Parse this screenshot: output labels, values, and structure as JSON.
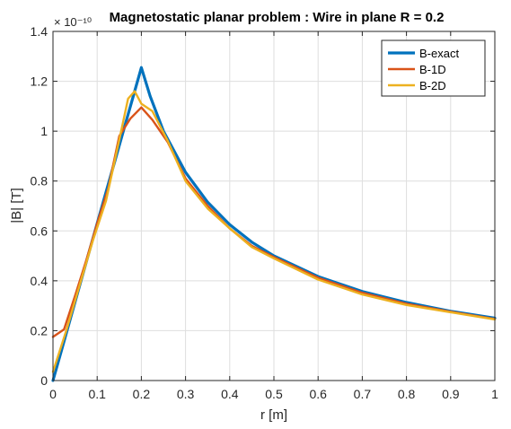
{
  "chart_data": {
    "type": "line",
    "title": "Magnetostatic planar problem : Wire in plane R = 0.2",
    "xlabel": "r [m]",
    "ylabel": "|B| [T]",
    "y_exponent_label": "× 10⁻¹⁰",
    "xlim": [
      0,
      1
    ],
    "ylim": [
      0,
      1.4
    ],
    "grid": true,
    "legend_position": "top-right",
    "x_ticks": [
      "0",
      "0.1",
      "0.2",
      "0.3",
      "0.4",
      "0.5",
      "0.6",
      "0.7",
      "0.8",
      "0.9",
      "1"
    ],
    "y_ticks": [
      "0",
      "0.2",
      "0.4",
      "0.6",
      "0.8",
      "1",
      "1.2",
      "1.4"
    ],
    "series": [
      {
        "name": "B-exact",
        "color": "#0072BD",
        "width": 3.2,
        "x": [
          0,
          0.02,
          0.05,
          0.08,
          0.1,
          0.12,
          0.14,
          0.16,
          0.18,
          0.2,
          0.22,
          0.25,
          0.3,
          0.35,
          0.4,
          0.45,
          0.5,
          0.6,
          0.7,
          0.8,
          0.9,
          1.0
        ],
        "y": [
          0,
          0.125,
          0.315,
          0.505,
          0.63,
          0.755,
          0.88,
          1.005,
          1.13,
          1.255,
          1.14,
          1.0,
          0.835,
          0.715,
          0.625,
          0.555,
          0.5,
          0.417,
          0.357,
          0.313,
          0.278,
          0.25
        ]
      },
      {
        "name": "B-1D",
        "color": "#D95319",
        "width": 2.4,
        "x": [
          0,
          0.025,
          0.05,
          0.075,
          0.1,
          0.125,
          0.15,
          0.175,
          0.2,
          0.225,
          0.26,
          0.3,
          0.35,
          0.4,
          0.45,
          0.5,
          0.6,
          0.7,
          0.8,
          0.9,
          1.0
        ],
        "y": [
          0.175,
          0.205,
          0.34,
          0.48,
          0.63,
          0.77,
          0.98,
          1.05,
          1.095,
          1.045,
          0.955,
          0.81,
          0.7,
          0.61,
          0.54,
          0.495,
          0.412,
          0.352,
          0.308,
          0.276,
          0.247
        ]
      },
      {
        "name": "B-2D",
        "color": "#EDB120",
        "width": 2.4,
        "x": [
          0,
          0.03,
          0.06,
          0.09,
          0.12,
          0.15,
          0.17,
          0.185,
          0.2,
          0.225,
          0.26,
          0.3,
          0.35,
          0.4,
          0.45,
          0.5,
          0.6,
          0.7,
          0.8,
          0.9,
          1.0
        ],
        "y": [
          0.035,
          0.2,
          0.38,
          0.56,
          0.72,
          0.965,
          1.13,
          1.16,
          1.11,
          1.08,
          0.96,
          0.8,
          0.69,
          0.61,
          0.535,
          0.49,
          0.405,
          0.345,
          0.303,
          0.274,
          0.245
        ]
      }
    ]
  }
}
